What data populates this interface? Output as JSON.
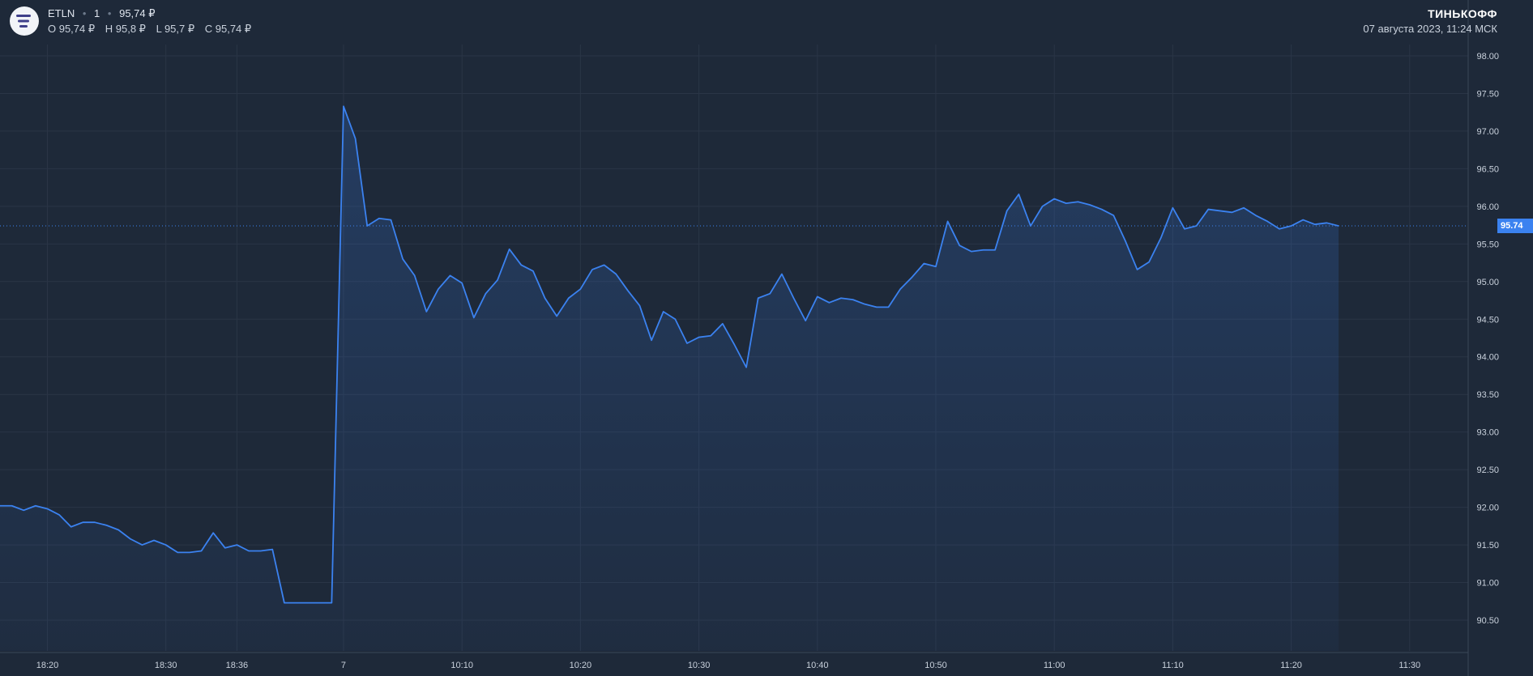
{
  "header": {
    "ticker": "ETLN",
    "interval": "1",
    "last_price": "95,74 ₽",
    "open": "O 95,74 ₽",
    "high": "H 95,8 ₽",
    "low": "L 95,7 ₽",
    "close": "C 95,74 ₽"
  },
  "brand": {
    "name": "ТИНЬКОФФ",
    "datetime": "07 августа 2023, 11:24 МСК"
  },
  "current_price_label": "95.74",
  "colors": {
    "background": "#1e2939",
    "line": "#3b82f0",
    "grid": "#2a3546",
    "price_tag": "#3b82f0"
  },
  "chart_data": {
    "type": "area",
    "title": "",
    "xlabel": "",
    "ylabel": "",
    "ylim": [
      90.0,
      98.3
    ],
    "y_ticks": [
      90.5,
      91.0,
      91.5,
      92.0,
      92.5,
      93.0,
      93.5,
      94.0,
      94.5,
      95.0,
      95.5,
      96.0,
      96.5,
      97.0,
      97.5,
      98.0
    ],
    "x_ticks": [
      "18:20",
      "18:30",
      "18:36",
      "7",
      "10:10",
      "10:20",
      "10:30",
      "10:40",
      "10:50",
      "11:00",
      "11:10",
      "11:20",
      "11:30"
    ],
    "x_tick_index": [
      4,
      14,
      20,
      29,
      39,
      49,
      59,
      69,
      79,
      89,
      99,
      109,
      119
    ],
    "current_price": 95.74,
    "grid": true,
    "series": [
      {
        "values": [
          92.02,
          92.02,
          91.96,
          92.02,
          91.98,
          91.9,
          91.74,
          91.8,
          91.8,
          91.76,
          91.7,
          91.58,
          91.5,
          91.56,
          91.5,
          91.4,
          91.4,
          91.42,
          91.66,
          91.46,
          91.5,
          91.42,
          91.42,
          91.44,
          90.73,
          90.73,
          90.73,
          90.73,
          90.73,
          97.33,
          96.9,
          95.74,
          95.84,
          95.82,
          95.3,
          95.08,
          94.6,
          94.9,
          95.08,
          94.98,
          94.52,
          94.84,
          95.02,
          95.43,
          95.22,
          95.14,
          94.78,
          94.54,
          94.78,
          94.9,
          95.16,
          95.22,
          95.1,
          94.88,
          94.68,
          94.22,
          94.6,
          94.5,
          94.18,
          94.26,
          94.28,
          94.44,
          94.16,
          93.86,
          94.78,
          94.84,
          95.1,
          94.78,
          94.48,
          94.8,
          94.72,
          94.78,
          94.76,
          94.7,
          94.66,
          94.66,
          94.9,
          95.06,
          95.24,
          95.2,
          95.8,
          95.48,
          95.4,
          95.42,
          95.42,
          95.94,
          96.16,
          95.74,
          96.0,
          96.1,
          96.04,
          96.06,
          96.02,
          95.96,
          95.88,
          95.54,
          95.16,
          95.26,
          95.58,
          95.98,
          95.7,
          95.74,
          95.96,
          95.94,
          95.92,
          95.98,
          95.88,
          95.8,
          95.7,
          95.74,
          95.82,
          95.76,
          95.78,
          95.74
        ]
      }
    ]
  }
}
